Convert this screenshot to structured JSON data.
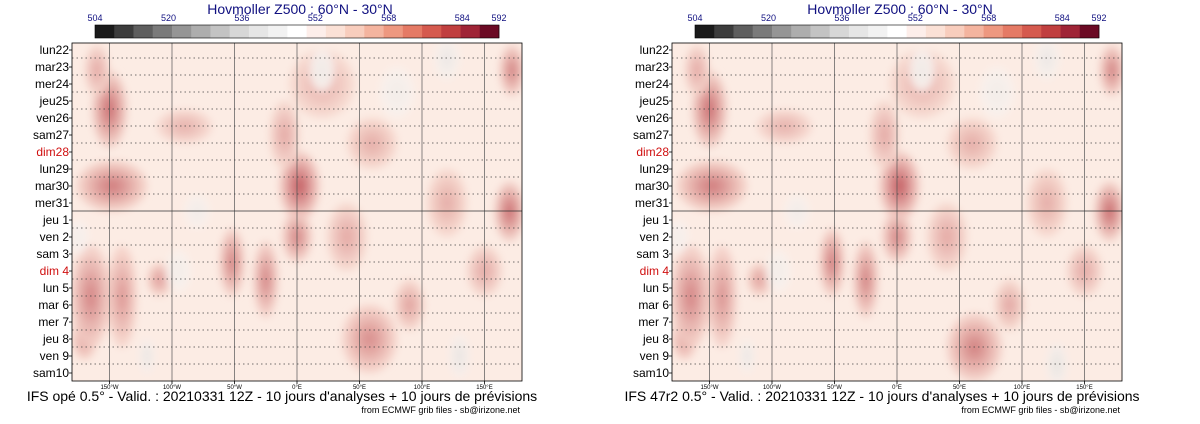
{
  "palette": {
    "cbar_colors": [
      "#1a1a1a",
      "#3c3c3c",
      "#5e5e5e",
      "#7a7a7a",
      "#959595",
      "#adadad",
      "#c3c3c3",
      "#d7d7d7",
      "#e6e6e6",
      "#f2f2f2",
      "#ffffff",
      "#fdeeea",
      "#fbe1d6",
      "#f8cdbd",
      "#f4b49f",
      "#ee9880",
      "#e57a65",
      "#d55a4e",
      "#c03f3f",
      "#9f2436",
      "#6b0a24"
    ],
    "grid_color": "#555555",
    "day_color": "#000000",
    "sunday_color": "#d01010",
    "title_color": "#101080"
  },
  "chart_data": [
    {
      "type": "heatmap",
      "title": "Hovmoller Z500 : 60°N - 30°N",
      "colorbar_ticks": [
        "504",
        "520",
        "536",
        "552",
        "568",
        "584",
        "592"
      ],
      "colorbar_values": [
        504,
        520,
        536,
        552,
        568,
        584,
        592
      ],
      "y_labels": [
        "lun22",
        "mar23",
        "mer24",
        "jeu25",
        "ven26",
        "sam27",
        "dim28",
        "lun29",
        "mar30",
        "mer31",
        "jeu 1",
        "ven 2",
        "sam 3",
        "dim 4",
        "lun 5",
        "mar 6",
        "mer 7",
        "jeu 8",
        "ven 9",
        "sam10"
      ],
      "sundays": [
        "dim28",
        "dim 4"
      ],
      "x_labels": [
        "150°W",
        "100°W",
        "50°W",
        "0°E",
        "50°E",
        "100°E",
        "150°E"
      ],
      "x_values": [
        -150,
        -100,
        -50,
        0,
        50,
        100,
        150
      ],
      "xlim": [
        -180,
        180
      ],
      "footer": "IFS opé 0.5° - Valid. : 20210331 12Z - 10 jours d'analyses + 10 jours de prévisions",
      "credit": "from ECMWF grib files - sb@irizone.net",
      "features": [
        {
          "lon": -150,
          "day": 3.5,
          "width": 14,
          "height": 4.5,
          "level": 0.62
        },
        {
          "lon": -160,
          "day": 1.2,
          "width": 10,
          "height": 3,
          "level": 0.3
        },
        {
          "lon": -148,
          "day": 8,
          "width": 28,
          "height": 3,
          "level": 0.55
        },
        {
          "lon": -140,
          "day": 14.5,
          "width": 12,
          "height": 6,
          "level": 0.4
        },
        {
          "lon": -170,
          "day": 17,
          "width": 10,
          "height": 2.5,
          "level": 0.38
        },
        {
          "lon": -165,
          "day": 14.5,
          "width": 16,
          "height": 6,
          "level": 0.5
        },
        {
          "lon": -110,
          "day": 13.5,
          "width": 10,
          "height": 2,
          "level": 0.38
        },
        {
          "lon": -90,
          "day": 4.5,
          "width": 22,
          "height": 2,
          "level": 0.26
        },
        {
          "lon": -52,
          "day": 12.5,
          "width": 10,
          "height": 4,
          "level": 0.52
        },
        {
          "lon": -25,
          "day": 13.5,
          "width": 10,
          "height": 4.5,
          "level": 0.5
        },
        {
          "lon": 2,
          "day": 8,
          "width": 16,
          "height": 4,
          "level": 0.72
        },
        {
          "lon": 0,
          "day": 11,
          "width": 12,
          "height": 3,
          "level": 0.5
        },
        {
          "lon": -10,
          "day": 5,
          "width": 12,
          "height": 4,
          "level": 0.3
        },
        {
          "lon": 20,
          "day": 2,
          "width": 26,
          "height": 4,
          "level": 0.25
        },
        {
          "lon": 60,
          "day": 5.5,
          "width": 20,
          "height": 3,
          "level": 0.28
        },
        {
          "lon": 58,
          "day": 17,
          "width": 22,
          "height": 4,
          "level": 0.45
        },
        {
          "lon": 40,
          "day": 11,
          "width": 16,
          "height": 4,
          "level": 0.3
        },
        {
          "lon": 90,
          "day": 15,
          "width": 12,
          "height": 3,
          "level": 0.34
        },
        {
          "lon": 120,
          "day": 9,
          "width": 16,
          "height": 4,
          "level": 0.28
        },
        {
          "lon": 170,
          "day": 9.5,
          "width": 12,
          "height": 3.5,
          "level": 0.62
        },
        {
          "lon": 172,
          "day": 1.2,
          "width": 10,
          "height": 3,
          "level": 0.52
        },
        {
          "lon": 150,
          "day": 13,
          "width": 14,
          "height": 3,
          "level": 0.3
        },
        {
          "lon": -120,
          "day": 18,
          "width": 6,
          "height": 2,
          "level": -0.22
        },
        {
          "lon": -95,
          "day": 13,
          "width": 10,
          "height": 2.5,
          "level": -0.1
        },
        {
          "lon": 20,
          "day": 1.2,
          "width": 10,
          "height": 2.5,
          "level": -0.15
        },
        {
          "lon": 120,
          "day": 0.5,
          "width": 10,
          "height": 2.5,
          "level": -0.18
        },
        {
          "lon": 130,
          "day": 18,
          "width": 8,
          "height": 2.5,
          "level": -0.22
        },
        {
          "lon": -80,
          "day": 9.5,
          "width": 10,
          "height": 2,
          "level": -0.12
        },
        {
          "lon": 80,
          "day": 2.5,
          "width": 14,
          "height": 3,
          "level": -0.1
        },
        {
          "lon": -175,
          "day": 11,
          "width": 8,
          "height": 2,
          "level": -0.08
        }
      ]
    },
    {
      "type": "heatmap",
      "title": "Hovmoller Z500 : 60°N - 30°N",
      "colorbar_ticks": [
        "504",
        "520",
        "536",
        "552",
        "568",
        "584",
        "592"
      ],
      "colorbar_values": [
        504,
        520,
        536,
        552,
        568,
        584,
        592
      ],
      "y_labels": [
        "lun22",
        "mar23",
        "mer24",
        "jeu25",
        "ven26",
        "sam27",
        "dim28",
        "lun29",
        "mar30",
        "mer31",
        "jeu 1",
        "ven 2",
        "sam 3",
        "dim 4",
        "lun 5",
        "mar 6",
        "mer 7",
        "jeu 8",
        "ven 9",
        "sam10"
      ],
      "sundays": [
        "dim28",
        "dim 4"
      ],
      "x_labels": [
        "150°W",
        "100°W",
        "50°W",
        "0°E",
        "50°E",
        "100°E",
        "150°E"
      ],
      "x_values": [
        -150,
        -100,
        -50,
        0,
        50,
        100,
        150
      ],
      "xlim": [
        -180,
        180
      ],
      "footer": "IFS 47r2 0.5° - Valid. : 20210331 12Z - 10 jours d'analyses + 10 jours de prévisions",
      "credit": "from ECMWF grib files - sb@irizone.net",
      "features": [
        {
          "lon": -150,
          "day": 3.5,
          "width": 14,
          "height": 4.5,
          "level": 0.62
        },
        {
          "lon": -160,
          "day": 1.2,
          "width": 10,
          "height": 3,
          "level": 0.3
        },
        {
          "lon": -148,
          "day": 8,
          "width": 28,
          "height": 3,
          "level": 0.55
        },
        {
          "lon": -140,
          "day": 14.5,
          "width": 12,
          "height": 6,
          "level": 0.42
        },
        {
          "lon": -170,
          "day": 17,
          "width": 10,
          "height": 2.5,
          "level": 0.4
        },
        {
          "lon": -165,
          "day": 14.5,
          "width": 16,
          "height": 6,
          "level": 0.5
        },
        {
          "lon": -110,
          "day": 13.5,
          "width": 10,
          "height": 2,
          "level": 0.36
        },
        {
          "lon": -90,
          "day": 4.5,
          "width": 22,
          "height": 2,
          "level": 0.26
        },
        {
          "lon": -52,
          "day": 12.5,
          "width": 10,
          "height": 4,
          "level": 0.55
        },
        {
          "lon": -25,
          "day": 13.5,
          "width": 10,
          "height": 4.5,
          "level": 0.52
        },
        {
          "lon": 2,
          "day": 8,
          "width": 16,
          "height": 4,
          "level": 0.72
        },
        {
          "lon": 0,
          "day": 11,
          "width": 12,
          "height": 3,
          "level": 0.5
        },
        {
          "lon": -10,
          "day": 5,
          "width": 12,
          "height": 4,
          "level": 0.3
        },
        {
          "lon": 20,
          "day": 2,
          "width": 26,
          "height": 4,
          "level": 0.25
        },
        {
          "lon": 60,
          "day": 5.5,
          "width": 20,
          "height": 3,
          "level": 0.28
        },
        {
          "lon": 62,
          "day": 17.5,
          "width": 22,
          "height": 4,
          "level": 0.52
        },
        {
          "lon": 40,
          "day": 11,
          "width": 16,
          "height": 4,
          "level": 0.3
        },
        {
          "lon": 90,
          "day": 15,
          "width": 12,
          "height": 3,
          "level": 0.32
        },
        {
          "lon": 120,
          "day": 9,
          "width": 16,
          "height": 4,
          "level": 0.28
        },
        {
          "lon": 170,
          "day": 9.5,
          "width": 12,
          "height": 3.5,
          "level": 0.64
        },
        {
          "lon": 172,
          "day": 1.2,
          "width": 10,
          "height": 3,
          "level": 0.52
        },
        {
          "lon": 150,
          "day": 13,
          "width": 14,
          "height": 3,
          "level": 0.3
        },
        {
          "lon": -120,
          "day": 18,
          "width": 6,
          "height": 2,
          "level": -0.2
        },
        {
          "lon": -95,
          "day": 13,
          "width": 10,
          "height": 2.5,
          "level": -0.1
        },
        {
          "lon": 20,
          "day": 1.2,
          "width": 10,
          "height": 2.5,
          "level": -0.15
        },
        {
          "lon": 120,
          "day": 0.5,
          "width": 10,
          "height": 2.5,
          "level": -0.18
        },
        {
          "lon": 128,
          "day": 18.5,
          "width": 8,
          "height": 2.5,
          "level": -0.24
        },
        {
          "lon": -80,
          "day": 9.5,
          "width": 10,
          "height": 2,
          "level": -0.12
        },
        {
          "lon": 80,
          "day": 2.5,
          "width": 14,
          "height": 3,
          "level": -0.1
        },
        {
          "lon": -175,
          "day": 11,
          "width": 8,
          "height": 2,
          "level": -0.08
        }
      ]
    }
  ]
}
